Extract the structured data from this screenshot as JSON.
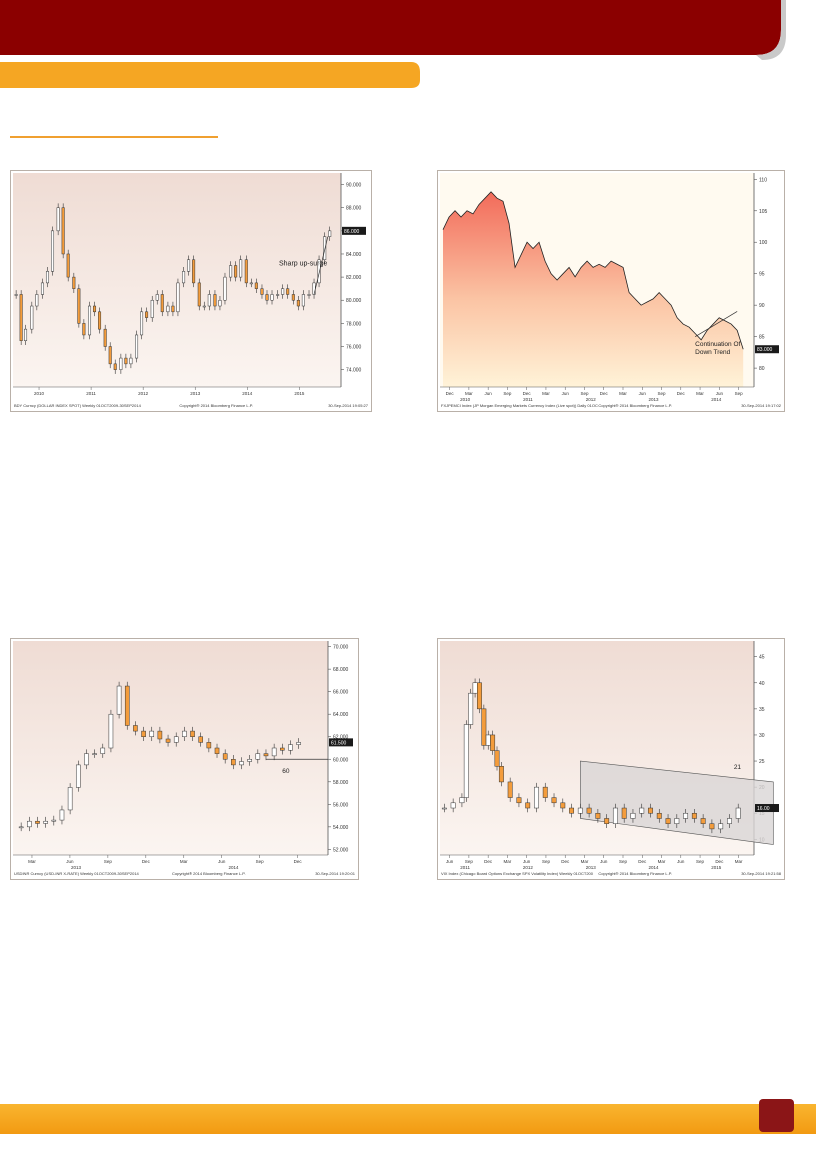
{
  "colors": {
    "maroon": "#8b0000",
    "orange": "#f5a623",
    "candle_up": "#ffffff",
    "candle_down": "#f39c3c",
    "line": "#222222"
  },
  "footer": {
    "page_number": ""
  },
  "chart_data": [
    {
      "type": "candlestick",
      "footer_left": "BDY Curncy (DOLLAR INDEX SPOT)  Weekly 01OCT2009-30SEP2014",
      "footer_mid": "Copyright® 2014 Bloomberg Finance L.P.",
      "footer_right": "30-Sep-2014 19:05:27",
      "annotation": "Sharp up-surge",
      "last_value": "86.000",
      "yticks": [
        "74.000",
        "76.000",
        "78.000",
        "80.000",
        "82.000",
        "84.000",
        "86.000",
        "88.000",
        "90.000"
      ],
      "ylim": [
        72.5,
        91
      ],
      "xticks": [
        "2010",
        "2011",
        "2012",
        "2013",
        "2014",
        "2015"
      ],
      "x": [
        2009.75,
        2009.83,
        2009.9,
        2010.0,
        2010.08,
        2010.17,
        2010.25,
        2010.33,
        2010.42,
        2010.5,
        2010.58,
        2010.67,
        2010.75,
        2010.83,
        2010.92,
        2011.0,
        2011.08,
        2011.17,
        2011.25,
        2011.33,
        2011.42,
        2011.5,
        2011.58,
        2011.67,
        2011.75,
        2011.83,
        2011.92,
        2012.0,
        2012.08,
        2012.17,
        2012.25,
        2012.33,
        2012.42,
        2012.5,
        2012.58,
        2012.67,
        2012.75,
        2012.83,
        2012.92,
        2013.0,
        2013.08,
        2013.17,
        2013.25,
        2013.33,
        2013.42,
        2013.5,
        2013.58,
        2013.67,
        2013.75,
        2013.83,
        2013.92,
        2014.0,
        2014.08,
        2014.17,
        2014.25,
        2014.33,
        2014.42,
        2014.5,
        2014.58,
        2014.67,
        2014.75
      ],
      "values": [
        80.5,
        76.5,
        77.5,
        79.5,
        80.5,
        81.5,
        82.5,
        86.0,
        88.0,
        84.0,
        82.0,
        81.0,
        78.0,
        77.0,
        79.5,
        79.0,
        77.5,
        76.0,
        74.5,
        74.0,
        75.0,
        74.5,
        75.0,
        77.0,
        79.0,
        78.5,
        80.0,
        80.5,
        79.0,
        79.5,
        79.0,
        81.5,
        82.5,
        83.5,
        81.5,
        79.5,
        79.5,
        80.5,
        79.5,
        80.0,
        82.0,
        83.0,
        82.0,
        83.5,
        81.5,
        81.5,
        81.0,
        80.5,
        80.0,
        80.5,
        80.5,
        81.0,
        80.5,
        80.0,
        79.5,
        80.5,
        80.5,
        81.5,
        83.5,
        85.5,
        86.0
      ],
      "trend_annotation_line": [
        [
          2014.5,
          80.5
        ],
        [
          2014.72,
          85.5
        ]
      ]
    },
    {
      "type": "line",
      "footer_left": "FXJPEMCI Index (JP Morgan Emerging Markets Currency Index (Live spot))  Daily 01OC",
      "footer_mid": "Copyright® 2014 Bloomberg Finance L.P.",
      "footer_right": "30-Sep-2014 19:17:02",
      "annotation": "Continuation Of Down Trend",
      "last_value": "83.000",
      "yticks": [
        "80",
        "85",
        "90",
        "95",
        "100",
        "105",
        "110"
      ],
      "ylim": [
        77,
        111
      ],
      "xticks": [
        "Dec",
        "Mar",
        "Jun",
        "Sep",
        "Dec",
        "Mar",
        "Jun",
        "Sep",
        "Dec",
        "Mar",
        "Jun",
        "Sep",
        "Dec",
        "Mar",
        "Jun",
        "Sep"
      ],
      "year_labels": [
        "2010",
        "2011",
        "2012",
        "2013",
        "2014"
      ],
      "x": [
        2009.75,
        2009.85,
        2009.95,
        2010.05,
        2010.15,
        2010.25,
        2010.35,
        2010.45,
        2010.55,
        2010.65,
        2010.75,
        2010.85,
        2010.95,
        2011.05,
        2011.15,
        2011.25,
        2011.35,
        2011.45,
        2011.55,
        2011.65,
        2011.75,
        2011.85,
        2011.95,
        2012.05,
        2012.15,
        2012.25,
        2012.35,
        2012.45,
        2012.55,
        2012.65,
        2012.75,
        2012.85,
        2012.95,
        2013.05,
        2013.15,
        2013.25,
        2013.35,
        2013.45,
        2013.55,
        2013.65,
        2013.75,
        2013.85,
        2013.95,
        2014.05,
        2014.15,
        2014.25,
        2014.35,
        2014.45,
        2014.55,
        2014.65,
        2014.75
      ],
      "values": [
        102,
        104,
        105,
        104,
        105,
        104.5,
        106,
        107,
        108,
        107,
        106.5,
        103,
        96,
        98,
        100,
        99,
        100,
        97,
        95,
        94,
        95,
        96,
        94.5,
        96,
        97,
        96,
        96.5,
        96,
        97,
        96.5,
        96,
        92,
        91,
        90,
        90.5,
        91,
        92,
        91,
        90,
        88,
        87,
        86.5,
        85.5,
        84.5,
        86,
        87,
        88,
        87.5,
        87,
        86,
        83
      ],
      "trend_annotation_line": [
        [
          2013.95,
          85
        ],
        [
          2014.65,
          89
        ]
      ]
    },
    {
      "type": "candlestick",
      "footer_left": "USDINR Curncy (USD-INR X-RATE)  Weekly 01OCT2009-30SEP2014",
      "footer_mid": "Copyright® 2014 Bloomberg Finance L.P.",
      "footer_right": "30-Sep-2014 19:20:01",
      "annotation": "60",
      "last_value": "61.500",
      "yticks": [
        "52.000",
        "54.000",
        "56.000",
        "58.000",
        "60.000",
        "62.000",
        "64.000",
        "66.000",
        "68.000",
        "70.000"
      ],
      "ylim": [
        51.5,
        70.5
      ],
      "xticks": [
        "Mar",
        "Jun",
        "Sep",
        "Dec",
        "Mar",
        "Jun",
        "Sep",
        "Dec"
      ],
      "year_labels": [
        "2013",
        "2014"
      ],
      "x": [
        2013.0,
        2013.05,
        2013.1,
        2013.15,
        2013.2,
        2013.25,
        2013.3,
        2013.35,
        2013.4,
        2013.45,
        2013.5,
        2013.55,
        2013.6,
        2013.65,
        2013.7,
        2013.75,
        2013.8,
        2013.85,
        2013.9,
        2013.95,
        2014.0,
        2014.05,
        2014.1,
        2014.15,
        2014.2,
        2014.25,
        2014.3,
        2014.35,
        2014.4,
        2014.45,
        2014.5,
        2014.55,
        2014.6,
        2014.65,
        2014.7
      ],
      "values": [
        54.0,
        54.5,
        54.3,
        54.5,
        54.6,
        55.5,
        57.5,
        59.5,
        60.5,
        60.5,
        61.0,
        64.0,
        66.5,
        63.0,
        62.5,
        62.0,
        62.5,
        61.8,
        61.5,
        62.0,
        62.5,
        62.0,
        61.5,
        61.0,
        60.5,
        60.0,
        59.5,
        59.8,
        60.0,
        60.5,
        60.3,
        61.0,
        60.8,
        61.3,
        61.5
      ],
      "support_level": 60
    },
    {
      "type": "candlestick",
      "footer_left": "VIX Index (Chicago Board Options Exchange SPX Volatility Index)  Weekly 01OCT200",
      "footer_mid": "Copyright® 2014 Bloomberg Finance L.P.",
      "footer_right": "30-Sep-2014 19:21:58",
      "annotation": "21",
      "last_value": "16.00",
      "yticks": [
        "10",
        "15",
        "20",
        "25",
        "30",
        "35",
        "40",
        "45"
      ],
      "ylim": [
        7,
        48
      ],
      "xticks": [
        "Jun",
        "Sep",
        "Dec",
        "Mar",
        "Jun",
        "Sep",
        "Dec",
        "Mar",
        "Jun",
        "Sep",
        "Dec",
        "Mar",
        "Jun",
        "Sep",
        "Dec",
        "Mar"
      ],
      "year_labels": [
        "2011",
        "2012",
        "2013",
        "2014",
        "2015"
      ],
      "x": [
        2011.35,
        2011.45,
        2011.55,
        2011.6,
        2011.65,
        2011.7,
        2011.75,
        2011.8,
        2011.85,
        2011.9,
        2011.95,
        2012.0,
        2012.1,
        2012.2,
        2012.3,
        2012.4,
        2012.5,
        2012.6,
        2012.7,
        2012.8,
        2012.9,
        2013.0,
        2013.1,
        2013.2,
        2013.3,
        2013.4,
        2013.5,
        2013.6,
        2013.7,
        2013.8,
        2013.9,
        2014.0,
        2014.1,
        2014.2,
        2014.3,
        2014.4,
        2014.5,
        2014.6,
        2014.7
      ],
      "values": [
        16,
        17,
        18,
        32,
        38,
        40,
        35,
        28,
        30,
        27,
        24,
        21,
        18,
        17,
        16,
        20,
        18,
        17,
        16,
        15,
        16,
        15,
        14,
        13,
        16,
        14,
        15,
        16,
        15,
        14,
        13,
        14,
        15,
        14,
        13,
        12,
        13,
        14,
        16
      ],
      "channel": {
        "upper": [
          [
            2012.9,
            25
          ],
          [
            2015.1,
            21
          ]
        ],
        "lower": [
          [
            2012.9,
            14
          ],
          [
            2015.1,
            9
          ]
        ]
      }
    }
  ]
}
